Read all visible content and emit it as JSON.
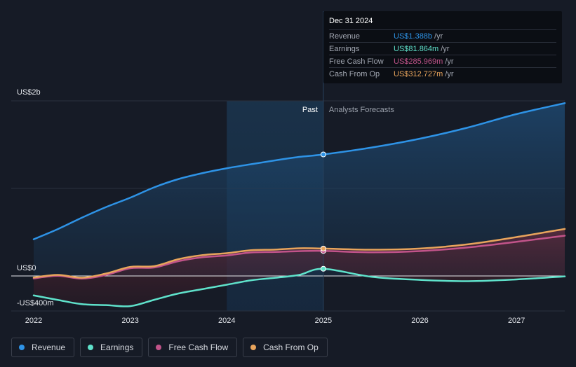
{
  "chart_data": {
    "type": "area",
    "x_ticks": [
      "2022",
      "2023",
      "2024",
      "2025",
      "2026",
      "2027"
    ],
    "y_labels": {
      "top": "US$2b",
      "zero": "US$0",
      "bottom": "-US$400m"
    },
    "ylim": [
      -400,
      2000
    ],
    "xlim": [
      2021.8,
      2027.5
    ],
    "past_label": "Past",
    "forecast_label": "Analysts Forecasts",
    "past_region_start": 2024.0,
    "divider_x": 2025.0,
    "series": [
      {
        "name": "Revenue",
        "color": "#2e93e6",
        "values": [
          [
            2022.0,
            419
          ],
          [
            2022.25,
            535
          ],
          [
            2022.5,
            666
          ],
          [
            2022.75,
            787
          ],
          [
            2023.0,
            894
          ],
          [
            2023.25,
            1013
          ],
          [
            2023.5,
            1107
          ],
          [
            2023.75,
            1175
          ],
          [
            2024.0,
            1230
          ],
          [
            2024.25,
            1276
          ],
          [
            2024.5,
            1320
          ],
          [
            2024.75,
            1360
          ],
          [
            2025.0,
            1388
          ],
          [
            2025.5,
            1467
          ],
          [
            2026.0,
            1568
          ],
          [
            2026.5,
            1696
          ],
          [
            2027.0,
            1849
          ],
          [
            2027.5,
            1974
          ]
        ]
      },
      {
        "name": "Earnings",
        "color": "#5fe2cb",
        "values": [
          [
            2022.0,
            -222
          ],
          [
            2022.25,
            -274
          ],
          [
            2022.5,
            -322
          ],
          [
            2022.75,
            -333
          ],
          [
            2023.0,
            -345
          ],
          [
            2023.25,
            -272
          ],
          [
            2023.5,
            -200
          ],
          [
            2023.75,
            -150
          ],
          [
            2024.0,
            -100
          ],
          [
            2024.25,
            -50
          ],
          [
            2024.5,
            -21
          ],
          [
            2024.75,
            12
          ],
          [
            2025.0,
            82
          ],
          [
            2025.5,
            -10
          ],
          [
            2026.0,
            -45
          ],
          [
            2026.5,
            -60
          ],
          [
            2027.0,
            -40
          ],
          [
            2027.5,
            -5
          ]
        ]
      },
      {
        "name": "Free Cash Flow",
        "color": "#c2548a",
        "values": [
          [
            2022.0,
            -28
          ],
          [
            2022.25,
            2
          ],
          [
            2022.5,
            -30
          ],
          [
            2022.75,
            12
          ],
          [
            2023.0,
            88
          ],
          [
            2023.25,
            97
          ],
          [
            2023.5,
            169
          ],
          [
            2023.75,
            214
          ],
          [
            2024.0,
            234
          ],
          [
            2024.25,
            268
          ],
          [
            2024.5,
            274
          ],
          [
            2024.75,
            283
          ],
          [
            2025.0,
            286
          ],
          [
            2025.5,
            270
          ],
          [
            2026.0,
            284
          ],
          [
            2026.5,
            326
          ],
          [
            2027.0,
            390
          ],
          [
            2027.5,
            460
          ]
        ]
      },
      {
        "name": "Cash From Op",
        "color": "#e8a45c",
        "values": [
          [
            2022.0,
            -18
          ],
          [
            2022.25,
            12
          ],
          [
            2022.5,
            -20
          ],
          [
            2022.75,
            28
          ],
          [
            2023.0,
            103
          ],
          [
            2023.25,
            112
          ],
          [
            2023.5,
            192
          ],
          [
            2023.75,
            238
          ],
          [
            2024.0,
            260
          ],
          [
            2024.25,
            294
          ],
          [
            2024.5,
            301
          ],
          [
            2024.75,
            316
          ],
          [
            2025.0,
            313
          ],
          [
            2025.5,
            300
          ],
          [
            2026.0,
            313
          ],
          [
            2026.5,
            362
          ],
          [
            2027.0,
            444
          ],
          [
            2027.5,
            537
          ]
        ]
      }
    ]
  },
  "tooltip": {
    "date": "Dec 31 2024",
    "unit": "/yr",
    "rows": [
      {
        "label": "Revenue",
        "value": "US$1.388b",
        "color": "#2e93e6"
      },
      {
        "label": "Earnings",
        "value": "US$81.864m",
        "color": "#5fe2cb"
      },
      {
        "label": "Free Cash Flow",
        "value": "US$285.969m",
        "color": "#c2548a"
      },
      {
        "label": "Cash From Op",
        "value": "US$312.727m",
        "color": "#e8a45c"
      }
    ]
  },
  "legend": [
    {
      "label": "Revenue",
      "color": "#2e93e6"
    },
    {
      "label": "Earnings",
      "color": "#5fe2cb"
    },
    {
      "label": "Free Cash Flow",
      "color": "#c2548a"
    },
    {
      "label": "Cash From Op",
      "color": "#e8a45c"
    }
  ]
}
